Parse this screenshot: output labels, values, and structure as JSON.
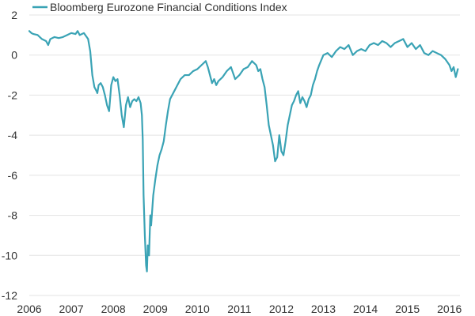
{
  "chart_data": {
    "type": "line",
    "title": "",
    "xlabel": "",
    "ylabel": "",
    "xlim": [
      2006,
      2016.25
    ],
    "ylim": [
      -12,
      2
    ],
    "x_ticks": [
      2006,
      2007,
      2008,
      2009,
      2010,
      2011,
      2012,
      2013,
      2014,
      2015,
      2016
    ],
    "y_ticks": [
      2,
      0,
      -2,
      -4,
      -6,
      -8,
      -10,
      -12
    ],
    "grid": "horizontal",
    "legend_position": "top-left",
    "series": [
      {
        "name": "Bloomberg Eurozone Financial Conditions Index",
        "color": "#3aa3b5",
        "x": [
          2006.0,
          2006.05,
          2006.1,
          2006.2,
          2006.3,
          2006.4,
          2006.45,
          2006.5,
          2006.6,
          2006.7,
          2006.8,
          2006.9,
          2007.0,
          2007.1,
          2007.15,
          2007.2,
          2007.3,
          2007.4,
          2007.45,
          2007.5,
          2007.55,
          2007.6,
          2007.62,
          2007.65,
          2007.7,
          2007.75,
          2007.8,
          2007.85,
          2007.9,
          2007.95,
          2008.0,
          2008.05,
          2008.1,
          2008.15,
          2008.2,
          2008.25,
          2008.3,
          2008.35,
          2008.4,
          2008.45,
          2008.5,
          2008.55,
          2008.6,
          2008.65,
          2008.68,
          2008.7,
          2008.72,
          2008.75,
          2008.78,
          2008.8,
          2008.82,
          2008.85,
          2008.88,
          2008.9,
          2008.95,
          2009.0,
          2009.05,
          2009.1,
          2009.15,
          2009.2,
          2009.25,
          2009.3,
          2009.35,
          2009.4,
          2009.5,
          2009.6,
          2009.7,
          2009.8,
          2009.9,
          2010.0,
          2010.1,
          2010.2,
          2010.25,
          2010.3,
          2010.35,
          2010.4,
          2010.45,
          2010.5,
          2010.6,
          2010.7,
          2010.8,
          2010.9,
          2011.0,
          2011.1,
          2011.2,
          2011.3,
          2011.4,
          2011.45,
          2011.5,
          2011.55,
          2011.6,
          2011.65,
          2011.7,
          2011.75,
          2011.8,
          2011.85,
          2011.9,
          2011.95,
          2012.0,
          2012.05,
          2012.1,
          2012.15,
          2012.2,
          2012.25,
          2012.3,
          2012.35,
          2012.4,
          2012.45,
          2012.5,
          2012.55,
          2012.6,
          2012.65,
          2012.7,
          2012.75,
          2012.8,
          2012.85,
          2012.9,
          2013.0,
          2013.1,
          2013.2,
          2013.3,
          2013.4,
          2013.5,
          2013.6,
          2013.7,
          2013.8,
          2013.9,
          2014.0,
          2014.1,
          2014.2,
          2014.3,
          2014.4,
          2014.5,
          2014.6,
          2014.7,
          2014.8,
          2014.9,
          2015.0,
          2015.1,
          2015.2,
          2015.3,
          2015.4,
          2015.5,
          2015.6,
          2015.7,
          2015.8,
          2015.9,
          2016.0,
          2016.05,
          2016.1,
          2016.15,
          2016.2
        ],
        "values": [
          1.2,
          1.1,
          1.05,
          1.0,
          0.8,
          0.7,
          0.5,
          0.8,
          0.9,
          0.85,
          0.9,
          1.0,
          1.1,
          1.05,
          1.2,
          1.0,
          1.1,
          0.8,
          0.2,
          -1.0,
          -1.6,
          -1.8,
          -1.9,
          -1.5,
          -1.4,
          -1.6,
          -2.0,
          -2.5,
          -2.8,
          -1.5,
          -1.1,
          -1.3,
          -1.2,
          -2.0,
          -3.0,
          -3.6,
          -2.5,
          -2.1,
          -2.6,
          -2.3,
          -2.2,
          -2.3,
          -2.1,
          -2.4,
          -3.0,
          -4.2,
          -7.0,
          -9.0,
          -10.5,
          -10.8,
          -9.5,
          -10.0,
          -8.0,
          -8.5,
          -7.0,
          -6.2,
          -5.5,
          -5.0,
          -4.7,
          -4.3,
          -3.5,
          -2.8,
          -2.2,
          -2.0,
          -1.6,
          -1.2,
          -1.0,
          -1.0,
          -0.8,
          -0.7,
          -0.5,
          -0.3,
          -0.6,
          -1.0,
          -1.4,
          -1.2,
          -1.5,
          -1.3,
          -1.1,
          -0.8,
          -0.6,
          -1.2,
          -1.0,
          -0.7,
          -0.6,
          -0.3,
          -0.5,
          -0.8,
          -0.7,
          -1.2,
          -1.6,
          -2.5,
          -3.5,
          -4.0,
          -4.5,
          -5.3,
          -5.1,
          -4.0,
          -4.8,
          -5.0,
          -4.3,
          -3.5,
          -3.0,
          -2.5,
          -2.3,
          -2.0,
          -1.8,
          -2.4,
          -2.1,
          -2.3,
          -2.6,
          -2.2,
          -2.0,
          -1.5,
          -1.2,
          -0.8,
          -0.5,
          0.0,
          0.1,
          -0.1,
          0.2,
          0.4,
          0.3,
          0.5,
          0.0,
          0.2,
          0.3,
          0.2,
          0.5,
          0.6,
          0.5,
          0.7,
          0.6,
          0.4,
          0.6,
          0.7,
          0.8,
          0.4,
          0.6,
          0.3,
          0.5,
          0.1,
          0.0,
          0.2,
          0.1,
          0.0,
          -0.2,
          -0.5,
          -0.8,
          -0.6,
          -1.1,
          -0.7
        ]
      }
    ]
  }
}
